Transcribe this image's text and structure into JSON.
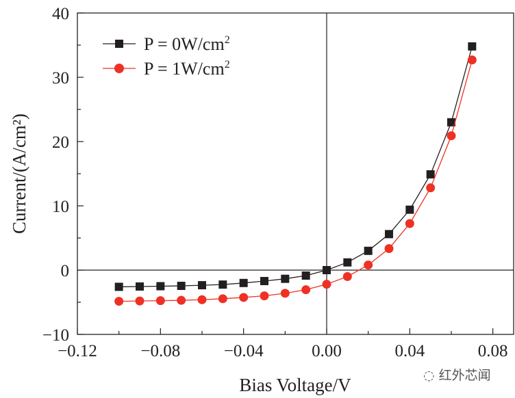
{
  "chart_data": {
    "type": "line",
    "xlabel": "Bias Voltage/V",
    "ylabel": "Current/(A/cm²)",
    "xlim": [
      -0.12,
      0.09
    ],
    "ylim": [
      -10,
      40
    ],
    "x_ticks": [
      "−0.12",
      "−0.08",
      "−0.04",
      "0.00",
      "0.04",
      "0.08"
    ],
    "x_tick_values": [
      -0.12,
      -0.08,
      -0.04,
      0.0,
      0.04,
      0.08
    ],
    "y_ticks": [
      "−10",
      "0",
      "10",
      "20",
      "30",
      "40"
    ],
    "y_tick_values": [
      -10,
      0,
      10,
      20,
      30,
      40
    ],
    "legend_position": "top-left",
    "x": [
      -0.1,
      -0.09,
      -0.08,
      -0.07,
      -0.06,
      -0.05,
      -0.04,
      -0.03,
      -0.02,
      -0.01,
      0.0,
      0.01,
      0.02,
      0.03,
      0.04,
      0.05,
      0.06,
      0.07
    ],
    "series": [
      {
        "name": "P = 0W/cm²",
        "name_base": "P = 0W/cm",
        "name_sup": "2",
        "color": "#231f20",
        "marker": "square",
        "values": [
          -2.6,
          -2.55,
          -2.5,
          -2.45,
          -2.35,
          -2.25,
          -2.0,
          -1.7,
          -1.35,
          -0.85,
          0.0,
          1.2,
          3.0,
          5.6,
          9.4,
          14.9,
          23.0,
          34.8
        ]
      },
      {
        "name": "P = 1W/cm²",
        "name_base": "P = 1W/cm",
        "name_sup": "2",
        "color": "#ee3124",
        "marker": "circle",
        "values": [
          -4.85,
          -4.8,
          -4.75,
          -4.7,
          -4.6,
          -4.45,
          -4.25,
          -4.0,
          -3.6,
          -3.05,
          -2.2,
          -1.0,
          0.8,
          3.35,
          7.25,
          12.8,
          20.9,
          32.7
        ]
      }
    ]
  },
  "watermark": {
    "text": "红外芯闻",
    "icon": "wechat-icon"
  }
}
